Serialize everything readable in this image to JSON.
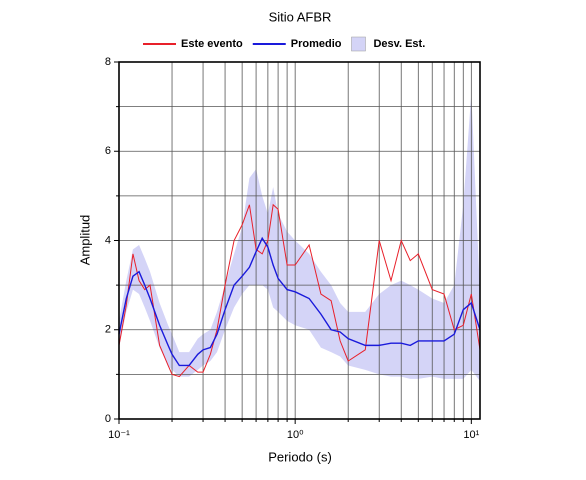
{
  "chart_data": {
    "type": "line",
    "title": "Sitio AFBR",
    "xlabel": "Periodo (s)",
    "ylabel": "Amplitud",
    "xscale": "log",
    "xlim": [
      0.1,
      11.2
    ],
    "ylim": [
      0,
      8
    ],
    "xticks": [
      {
        "value": 0.1,
        "label": "10⁻¹"
      },
      {
        "value": 1,
        "label": "10⁰"
      },
      {
        "value": 10,
        "label": "10¹"
      }
    ],
    "xminorticks": [
      0.2,
      0.3,
      0.4,
      0.5,
      0.6,
      0.7,
      0.8,
      0.9,
      2,
      3,
      4,
      5,
      6,
      7,
      8,
      9
    ],
    "yticks": [
      0,
      2,
      4,
      6,
      8
    ],
    "yminorticks": [
      1,
      3,
      5,
      7
    ],
    "grid": true,
    "legend": "top",
    "x": [
      0.1,
      0.11,
      0.12,
      0.13,
      0.14,
      0.15,
      0.17,
      0.19,
      0.2,
      0.22,
      0.25,
      0.28,
      0.3,
      0.33,
      0.36,
      0.4,
      0.45,
      0.5,
      0.55,
      0.6,
      0.65,
      0.7,
      0.75,
      0.8,
      0.9,
      1.0,
      1.2,
      1.4,
      1.6,
      1.8,
      2.0,
      2.5,
      3.0,
      3.5,
      4.0,
      4.5,
      5.0,
      6.0,
      7.0,
      8.0,
      9.0,
      10,
      11.2
    ],
    "band": {
      "name": "Desv. Est.",
      "color": "#d4d4f7",
      "upper": [
        2.2,
        3.1,
        3.8,
        3.9,
        3.6,
        3.3,
        2.6,
        2.1,
        1.9,
        1.5,
        1.5,
        1.8,
        1.9,
        2.0,
        2.4,
        3.0,
        3.7,
        4.3,
        5.4,
        5.6,
        5.0,
        4.6,
        5.2,
        4.6,
        4.2,
        4.0,
        3.7,
        3.3,
        3.0,
        2.6,
        2.4,
        2.4,
        2.8,
        3.0,
        3.1,
        3.0,
        2.9,
        2.7,
        2.6,
        3.0,
        4.8,
        7.3,
        2.8
      ],
      "lower": [
        1.6,
        2.4,
        2.9,
        2.8,
        2.5,
        2.2,
        1.6,
        1.2,
        1.1,
        0.95,
        0.95,
        1.1,
        1.2,
        1.3,
        1.5,
        2.0,
        2.5,
        2.8,
        3.0,
        3.0,
        3.0,
        2.9,
        2.5,
        2.4,
        2.2,
        2.1,
        2.0,
        1.6,
        1.5,
        1.4,
        1.2,
        1.1,
        1.0,
        0.95,
        0.95,
        0.9,
        0.9,
        0.95,
        0.9,
        0.9,
        0.9,
        1.1,
        0.85
      ]
    },
    "series": [
      {
        "name": "Este evento",
        "color": "#e8202a",
        "values": [
          1.65,
          2.55,
          3.7,
          3.1,
          2.9,
          3.0,
          1.65,
          1.2,
          1.0,
          0.95,
          1.2,
          1.05,
          1.05,
          1.45,
          2.0,
          3.0,
          4.0,
          4.35,
          4.8,
          3.8,
          3.7,
          4.0,
          4.8,
          4.7,
          3.45,
          3.45,
          3.9,
          2.8,
          2.65,
          1.75,
          1.3,
          1.55,
          4.0,
          3.1,
          4.0,
          3.55,
          3.7,
          2.9,
          2.8,
          2.0,
          2.1,
          2.8,
          1.55
        ]
      },
      {
        "name": "Promedio",
        "color": "#1a1adb",
        "values": [
          1.9,
          2.7,
          3.2,
          3.3,
          3.0,
          2.7,
          2.1,
          1.65,
          1.45,
          1.2,
          1.2,
          1.45,
          1.55,
          1.6,
          1.9,
          2.45,
          3.0,
          3.2,
          3.4,
          3.75,
          4.05,
          3.85,
          3.45,
          3.15,
          2.9,
          2.85,
          2.7,
          2.35,
          2.0,
          1.95,
          1.8,
          1.65,
          1.65,
          1.7,
          1.7,
          1.65,
          1.75,
          1.75,
          1.75,
          1.9,
          2.45,
          2.6,
          2.0
        ]
      }
    ]
  }
}
